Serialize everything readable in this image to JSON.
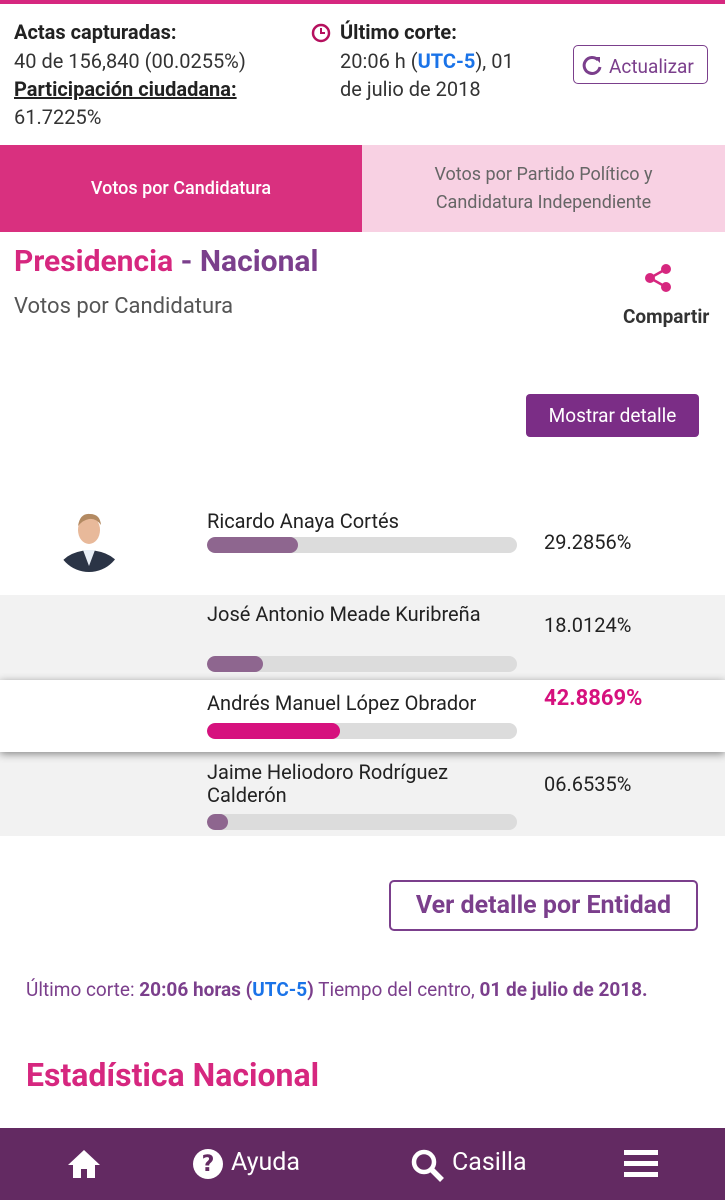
{
  "header": {
    "actas_label": "Actas capturadas:",
    "actas_value": "40 de 156,840 (00.0255%)",
    "participacion_label": "Participación ciudadana:",
    "participacion_value": "61.7225%",
    "corte_label": "Último corte:",
    "corte_time": "20:06 h (",
    "corte_tz": "UTC-5",
    "corte_rest": "), 01",
    "corte_date": "de julio de 2018",
    "refresh_button": "Actualizar"
  },
  "tabs": [
    "Votos por Candidatura",
    "Votos por Partido Político y Candidatura Independiente"
  ],
  "section": {
    "title_main": "Presidencia",
    "title_rest": " - Nacional",
    "subtitle": "Votos por Candidatura",
    "share": "Compartir",
    "detail_button": "Mostrar detalle"
  },
  "candidates": [
    {
      "name": "Ricardo Anaya Cortés",
      "percent": 29.2856,
      "percent_label": "29.2856%"
    },
    {
      "name": "José Antonio Meade Kuribreña",
      "percent": 18.0124,
      "percent_label": "18.0124%"
    },
    {
      "name": "Andrés Manuel López Obrador",
      "percent": 42.8869,
      "percent_label": "42.8869%"
    },
    {
      "name": "Jaime Heliodoro Rodríguez Calderón",
      "percent": 6.6535,
      "percent_label": "06.6535%"
    }
  ],
  "entity_button": "Ver detalle por Entidad",
  "footer_note": {
    "label": "Último corte: ",
    "time": "20:06 horas (",
    "tz": "UTC-5",
    "time_end": ")",
    "zone": " Tiempo del centro, ",
    "date": "01 de julio de 2018."
  },
  "stats_title": "Estadística Nacional",
  "nav": {
    "help": "Ayuda",
    "search": "Casilla"
  }
}
